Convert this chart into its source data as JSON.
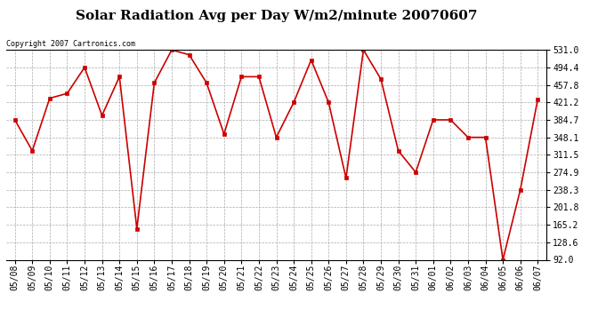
{
  "title": "Solar Radiation Avg per Day W/m2/minute 20070607",
  "copyright": "Copyright 2007 Cartronics.com",
  "dates": [
    "05/08",
    "05/09",
    "05/10",
    "05/11",
    "05/12",
    "05/13",
    "05/14",
    "05/15",
    "05/16",
    "05/17",
    "05/18",
    "05/19",
    "05/20",
    "05/21",
    "05/22",
    "05/23",
    "05/24",
    "05/25",
    "05/26",
    "05/27",
    "05/28",
    "05/29",
    "05/30",
    "05/31",
    "06/01",
    "06/02",
    "06/03",
    "06/04",
    "06/05",
    "06/06",
    "06/07"
  ],
  "values": [
    384.7,
    320.0,
    430.0,
    440.0,
    494.4,
    394.0,
    475.0,
    157.0,
    462.0,
    531.0,
    521.0,
    462.0,
    355.0,
    475.0,
    475.0,
    348.1,
    421.2,
    510.0,
    421.2,
    263.0,
    531.0,
    470.0,
    320.0,
    275.0,
    384.7,
    384.7,
    348.1,
    348.1,
    92.0,
    238.3,
    428.0
  ],
  "line_color": "#CC0000",
  "marker": "s",
  "marker_size": 2.5,
  "bg_color": "#ffffff",
  "grid_color": "#aaaaaa",
  "yticks": [
    92.0,
    128.6,
    165.2,
    201.8,
    238.3,
    274.9,
    311.5,
    348.1,
    384.7,
    421.2,
    457.8,
    494.4,
    531.0
  ],
  "ylim": [
    92.0,
    531.0
  ],
  "title_fontsize": 11,
  "tick_fontsize": 7,
  "copyright_fontsize": 6
}
